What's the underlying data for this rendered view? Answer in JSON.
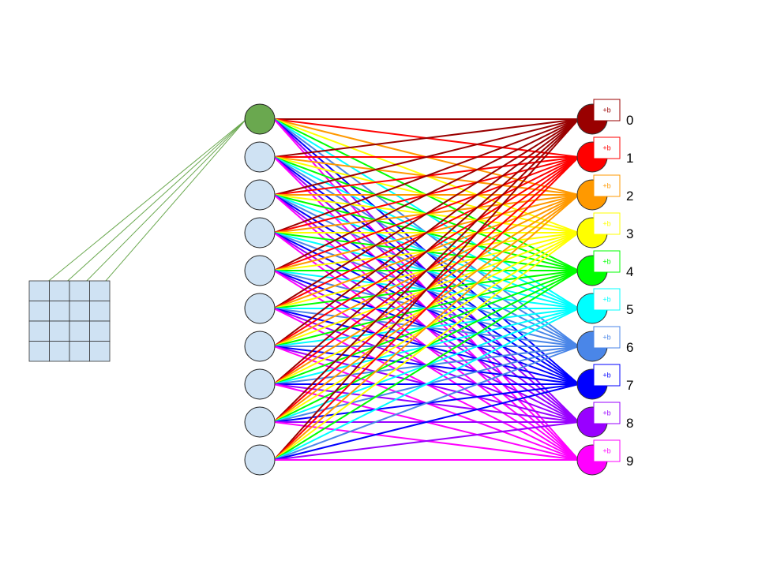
{
  "input_grid": {
    "rows": 4,
    "cols": 4,
    "fill": "#cfe2f3",
    "stroke": "#333333",
    "connected_cells": [
      0,
      1,
      2,
      3
    ],
    "connection_color": "#6aa84f"
  },
  "hidden_layer": {
    "count": 10,
    "active_index": 0,
    "active_fill": "#6aa84f",
    "fill": "#cfe2f3",
    "stroke": "#222222"
  },
  "output_layer": {
    "nodes": [
      {
        "label": "0",
        "color": "#990000"
      },
      {
        "label": "1",
        "color": "#ff0000"
      },
      {
        "label": "2",
        "color": "#ff9900"
      },
      {
        "label": "3",
        "color": "#ffff00"
      },
      {
        "label": "4",
        "color": "#00ff00"
      },
      {
        "label": "5",
        "color": "#00ffff"
      },
      {
        "label": "6",
        "color": "#4a86e8"
      },
      {
        "label": "7",
        "color": "#0000ff"
      },
      {
        "label": "8",
        "color": "#9900ff"
      },
      {
        "label": "9",
        "color": "#ff00ff"
      }
    ],
    "bias_label": "+b"
  }
}
